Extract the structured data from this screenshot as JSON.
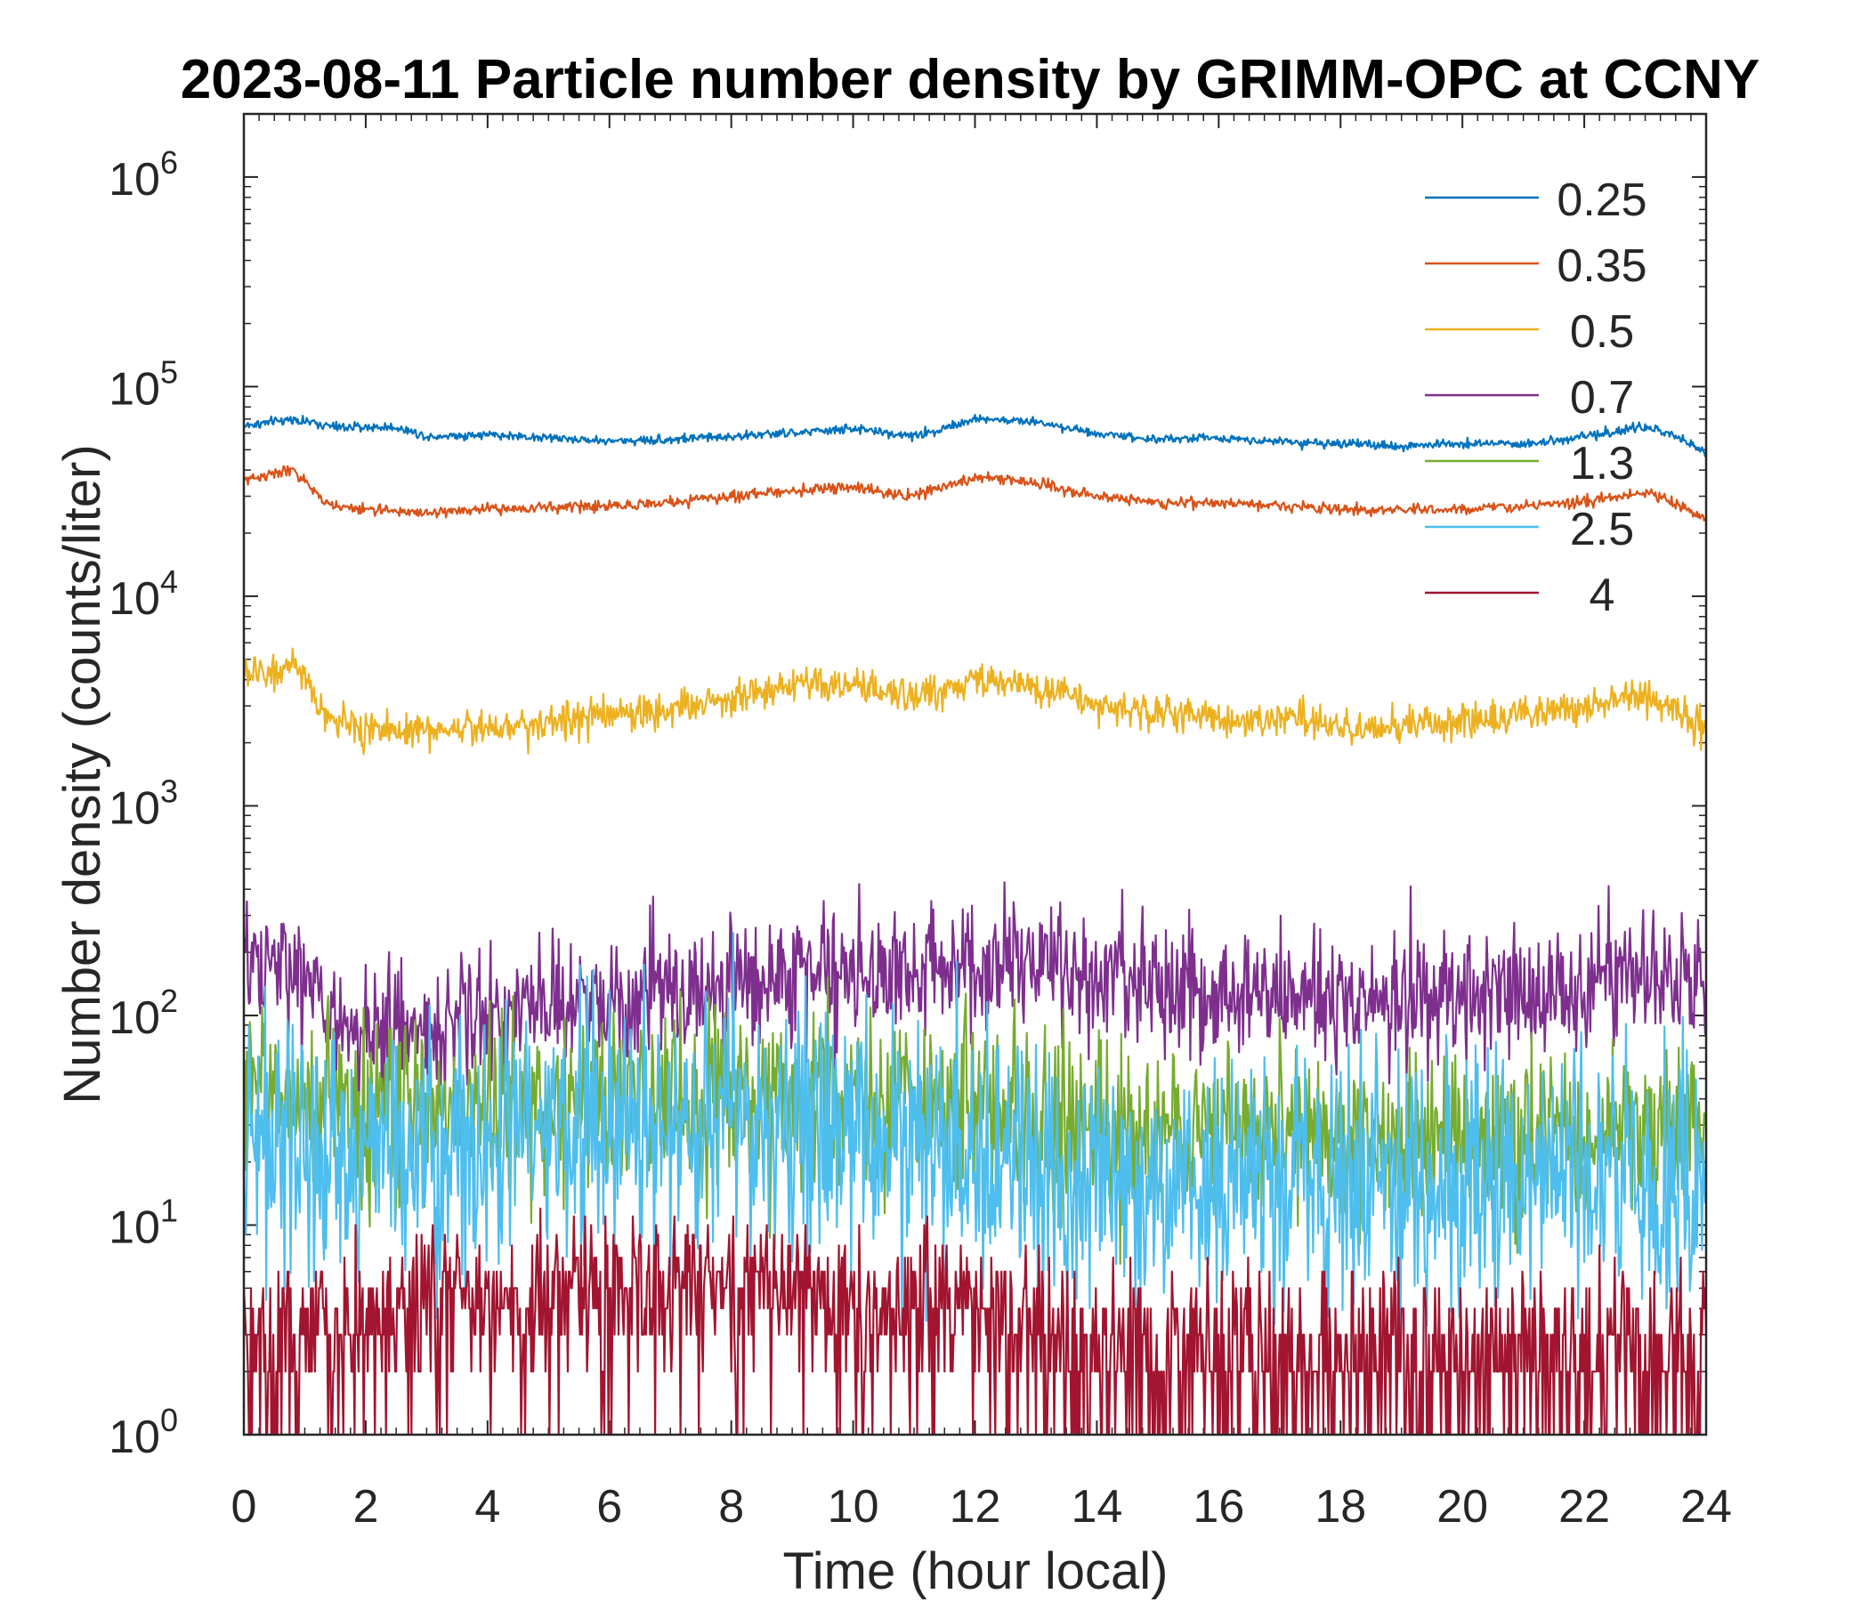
{
  "chart_data": {
    "type": "line",
    "title": "2023-08-11 Particle number density by GRIMM-OPC at CCNY",
    "xlabel": "Time (hour local)",
    "ylabel": "Number density (counts/liter)",
    "yscale": "log",
    "xlim": [
      0,
      24
    ],
    "ylim": [
      1,
      2000000
    ],
    "x_ticks": [
      0,
      2,
      4,
      6,
      8,
      10,
      12,
      14,
      16,
      18,
      20,
      22,
      24
    ],
    "x_tick_labels": [
      "0",
      "2",
      "4",
      "6",
      "8",
      "10",
      "12",
      "14",
      "16",
      "18",
      "20",
      "22",
      "24"
    ],
    "y_ticks": [
      1,
      10,
      100,
      1000,
      10000,
      100000,
      1000000
    ],
    "y_tick_labels": [
      {
        "base": "10",
        "exp": "0"
      },
      {
        "base": "10",
        "exp": "1"
      },
      {
        "base": "10",
        "exp": "2"
      },
      {
        "base": "10",
        "exp": "3"
      },
      {
        "base": "10",
        "exp": "4"
      },
      {
        "base": "10",
        "exp": "5"
      },
      {
        "base": "10",
        "exp": "6"
      }
    ],
    "legend_position": "top-right",
    "series": [
      {
        "name": "0.25",
        "legend_label": "0.25",
        "color": "#0072BD",
        "x": [
          0,
          0.8,
          1.5,
          2.5,
          3,
          4,
          5,
          6,
          7,
          8,
          9,
          10,
          11,
          12,
          13,
          14,
          15,
          16,
          17,
          18,
          19,
          20,
          21,
          22,
          23,
          23.5,
          24
        ],
        "y": [
          65000,
          70000,
          64000,
          64000,
          58000,
          59000,
          57000,
          55000,
          56000,
          58000,
          60000,
          63000,
          58000,
          70000,
          68000,
          60000,
          56000,
          57000,
          55000,
          53000,
          52000,
          54000,
          53000,
          58000,
          64000,
          58000,
          48000
        ]
      },
      {
        "name": "0.35",
        "legend_label": "0.35",
        "color": "#D95319",
        "x": [
          0,
          0.8,
          1.4,
          2,
          3,
          4,
          5,
          6,
          7,
          8,
          9,
          10,
          11,
          12,
          13,
          14,
          15,
          16,
          17,
          18,
          19,
          20,
          21,
          22,
          23,
          23.5,
          24
        ],
        "y": [
          36000,
          40000,
          27000,
          26000,
          25000,
          26000,
          26500,
          27000,
          28000,
          30000,
          32000,
          33000,
          30000,
          37000,
          35000,
          30000,
          28000,
          28000,
          27000,
          26000,
          26000,
          26000,
          27000,
          28000,
          31000,
          28000,
          23000
        ]
      },
      {
        "name": "0.5",
        "legend_label": "0.5",
        "color": "#EDB120",
        "x": [
          0,
          0.8,
          1.4,
          2,
          3,
          4,
          5,
          6,
          7,
          8,
          9,
          10,
          11,
          12,
          13,
          14,
          15,
          16,
          17,
          18,
          19,
          20,
          21,
          22,
          23,
          23.5,
          24
        ],
        "y": [
          4200,
          4600,
          2600,
          2300,
          2300,
          2400,
          2500,
          2700,
          2900,
          3300,
          3700,
          3700,
          3300,
          4000,
          3700,
          3000,
          2800,
          2600,
          2600,
          2400,
          2400,
          2500,
          2700,
          3000,
          3400,
          2900,
          2300
        ]
      },
      {
        "name": "0.7",
        "legend_label": "0.7",
        "color": "#7E2F8E",
        "x": [
          0,
          0.8,
          1.5,
          2,
          3,
          4,
          5,
          6,
          7,
          8,
          9,
          10,
          11,
          12,
          13,
          14,
          15,
          16,
          17,
          18,
          19,
          20,
          21,
          22,
          23,
          24
        ],
        "y": [
          160,
          170,
          95,
          80,
          90,
          100,
          105,
          115,
          125,
          140,
          155,
          165,
          160,
          180,
          170,
          150,
          135,
          130,
          125,
          120,
          120,
          125,
          130,
          140,
          160,
          130
        ]
      },
      {
        "name": "1.3",
        "legend_label": "1.3",
        "color": "#77AC30",
        "x": [
          0,
          1,
          2,
          3,
          4,
          5,
          6,
          7,
          8,
          9,
          10,
          11,
          12,
          13,
          14,
          15,
          16,
          17,
          18,
          19,
          20,
          21,
          22,
          23,
          24
        ],
        "y": [
          45,
          40,
          35,
          35,
          36,
          37,
          38,
          40,
          40,
          38,
          40,
          42,
          35,
          30,
          28,
          27,
          28,
          30,
          27,
          26,
          27,
          27,
          27,
          28,
          25
        ]
      },
      {
        "name": "2.5",
        "legend_label": "2.5",
        "color": "#4DBEEE",
        "x": [
          0,
          1,
          2,
          3,
          4,
          5,
          6,
          7,
          8,
          9,
          10,
          11,
          12,
          13,
          14,
          15,
          16,
          17,
          18,
          19,
          20,
          21,
          22,
          23,
          24
        ],
        "y": [
          25,
          22,
          23,
          25,
          24,
          27,
          28,
          30,
          30,
          28,
          28,
          27,
          22,
          18,
          16,
          15,
          16,
          17,
          15,
          15,
          15,
          16,
          16,
          17,
          15
        ]
      },
      {
        "name": "4",
        "legend_label": "4",
        "color": "#A2142F",
        "x": [
          0,
          1,
          2,
          3,
          4,
          5,
          6,
          7,
          8,
          9,
          10,
          11,
          12,
          13,
          14,
          15,
          16,
          17,
          18,
          19,
          20,
          21,
          22,
          23,
          24
        ],
        "y": [
          3,
          3,
          3.5,
          4,
          4,
          5,
          5,
          6,
          5,
          5,
          4.5,
          4.5,
          3.5,
          3,
          2.5,
          2.5,
          2.5,
          2.5,
          2.5,
          2.5,
          2.5,
          2.5,
          2.5,
          2.8,
          2.5
        ]
      }
    ]
  }
}
